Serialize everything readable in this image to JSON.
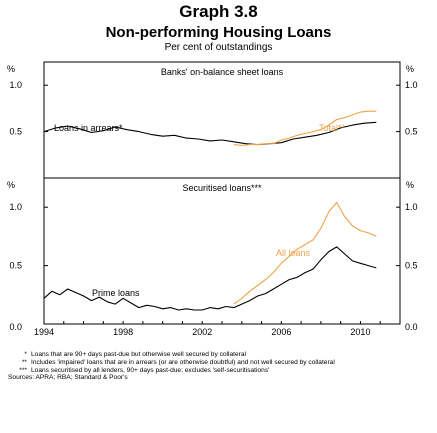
{
  "header": {
    "graph_number": "Graph 3.8",
    "title": "Non-performing Housing Loans",
    "subtitle": "Per cent of outstandings"
  },
  "footnotes": [
    {
      "mark": "*",
      "text": "Loans that are 90+ days past-due but otherwise well secured by collateral"
    },
    {
      "mark": "**",
      "text": "Includes 'impaired' loans that are in arrears (or are otherwise doubtful) and not well secured by collateral"
    },
    {
      "mark": "***",
      "text": "Loans securitised by all lenders, 90+ days past-due; excludes 'self-securitisations'"
    }
  ],
  "sources": "Sources: APRA; RBA; Standard & Poor's",
  "colors": {
    "arrears": "#000000",
    "total": "#f0a24a",
    "prime": "#000000",
    "all_loans": "#f0a24a",
    "frame": "#000000"
  },
  "chart_data": [
    {
      "type": "line",
      "title": "Banks' on-balance sheet loans",
      "y_unit": "%",
      "yticks": [
        "0.5",
        "1.0"
      ],
      "ylim": [
        0,
        1.25
      ],
      "xlim": [
        1994,
        2012
      ],
      "series": [
        {
          "name": "Loans in arrears*",
          "x": [
            1994.0,
            1994.6,
            1995.2,
            1995.8,
            1996.4,
            1997.0,
            1997.6,
            1998.2,
            1998.8,
            1999.4,
            2000.0,
            2000.6,
            2001.2,
            2001.8,
            2002.4,
            2003.0,
            2003.6,
            2004.2,
            2004.8,
            2005.4,
            2006.0,
            2006.6,
            2007.2,
            2007.8,
            2008.4,
            2009.0,
            2009.6,
            2010.2,
            2010.8
          ],
          "y": [
            0.5,
            0.54,
            0.56,
            0.53,
            0.49,
            0.51,
            0.55,
            0.52,
            0.5,
            0.47,
            0.45,
            0.46,
            0.43,
            0.42,
            0.4,
            0.41,
            0.39,
            0.37,
            0.36,
            0.37,
            0.38,
            0.42,
            0.44,
            0.46,
            0.49,
            0.54,
            0.57,
            0.59,
            0.6
          ]
        },
        {
          "name": "Total**",
          "x": [
            2003.6,
            2004.0,
            2004.4,
            2004.8,
            2005.2,
            2005.6,
            2006.0,
            2006.4,
            2006.8,
            2007.2,
            2007.6,
            2008.0,
            2008.4,
            2008.8,
            2009.2,
            2009.6,
            2010.0,
            2010.4,
            2010.8
          ],
          "y": [
            0.36,
            0.35,
            0.36,
            0.36,
            0.37,
            0.37,
            0.41,
            0.43,
            0.46,
            0.48,
            0.5,
            0.52,
            0.57,
            0.63,
            0.65,
            0.68,
            0.71,
            0.72,
            0.72
          ]
        }
      ],
      "labels": {
        "arrears": "Loans in arrears*",
        "total": "Total**"
      }
    },
    {
      "type": "line",
      "title": "Securitised loans***",
      "y_unit": "%",
      "yticks": [
        "0.0",
        "0.5",
        "1.0"
      ],
      "ylim": [
        0,
        1.25
      ],
      "xlim": [
        1994,
        2012
      ],
      "xticks": [
        "1994",
        "1998",
        "2002",
        "2006",
        "2010"
      ],
      "series": [
        {
          "name": "Prime loans",
          "x": [
            1994.0,
            1994.4,
            1994.8,
            1995.2,
            1995.6,
            1996.0,
            1996.4,
            1996.8,
            1997.2,
            1997.6,
            1998.0,
            1998.4,
            1998.8,
            1999.2,
            1999.6,
            2000.0,
            2000.4,
            2000.8,
            2001.2,
            2001.6,
            2002.0,
            2002.4,
            2002.8,
            2003.2,
            2003.6,
            2004.0,
            2004.4,
            2004.8,
            2005.2,
            2005.6,
            2006.0,
            2006.4,
            2006.8,
            2007.2,
            2007.6,
            2008.0,
            2008.4,
            2008.8,
            2009.2,
            2009.6,
            2010.0,
            2010.4,
            2010.8
          ],
          "y": [
            0.22,
            0.28,
            0.25,
            0.3,
            0.27,
            0.24,
            0.2,
            0.23,
            0.19,
            0.17,
            0.22,
            0.18,
            0.14,
            0.16,
            0.15,
            0.13,
            0.14,
            0.12,
            0.13,
            0.12,
            0.12,
            0.14,
            0.13,
            0.15,
            0.14,
            0.17,
            0.2,
            0.24,
            0.26,
            0.3,
            0.34,
            0.38,
            0.4,
            0.44,
            0.47,
            0.55,
            0.62,
            0.66,
            0.6,
            0.54,
            0.52,
            0.5,
            0.48
          ]
        },
        {
          "name": "All loans",
          "x": [
            2003.6,
            2004.0,
            2004.4,
            2004.8,
            2005.2,
            2005.6,
            2006.0,
            2006.4,
            2006.8,
            2007.2,
            2007.6,
            2008.0,
            2008.4,
            2008.8,
            2009.2,
            2009.6,
            2010.0,
            2010.4,
            2010.8
          ],
          "y": [
            0.17,
            0.22,
            0.28,
            0.33,
            0.38,
            0.44,
            0.52,
            0.58,
            0.64,
            0.68,
            0.72,
            0.82,
            0.96,
            1.04,
            0.92,
            0.84,
            0.8,
            0.78,
            0.75
          ]
        }
      ],
      "labels": {
        "prime": "Prime loans",
        "all": "All loans"
      }
    }
  ]
}
